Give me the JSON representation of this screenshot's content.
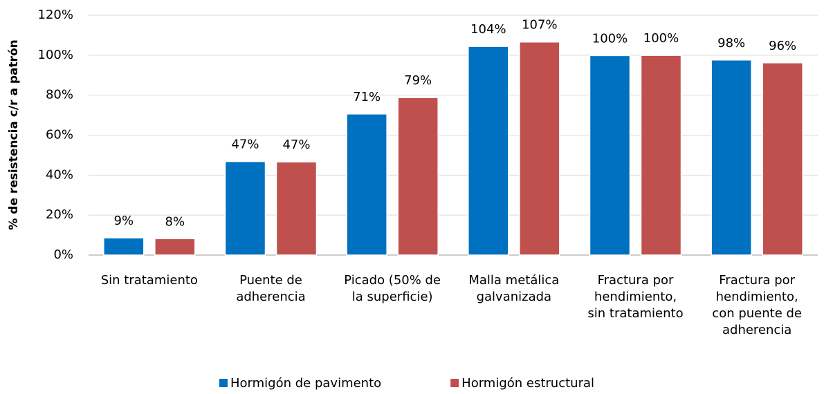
{
  "chart_data": {
    "type": "bar",
    "y_label": "% de resistencia c/r a patrón",
    "categories": [
      "Sin tratamiento",
      "Puente de\nadherencia",
      "Picado (50% de\nla superficie)",
      "Malla metálica\ngalvanizada",
      "Fractura por\nhendimiento,\nsin tratamiento",
      "Fractura por\nhendimiento,\ncon puente de\nadherencia"
    ],
    "series": [
      {
        "name": "Hormigón de pavimento",
        "color": "#0070c0",
        "values": [
          8.6,
          46.8,
          70.6,
          104.4,
          99.8,
          97.6
        ],
        "value_labels": [
          "9%",
          "47%",
          "71%",
          "104%",
          "100%",
          "98%"
        ]
      },
      {
        "name": "Hormigón estructural",
        "color": "#c0504d",
        "values": [
          8.2,
          46.6,
          78.8,
          106.6,
          99.9,
          96.2
        ],
        "value_labels": [
          "8%",
          "47%",
          "79%",
          "107%",
          "100%",
          "96%"
        ]
      }
    ],
    "ylim": [
      0,
      120
    ],
    "yticks": [
      {
        "value": 0,
        "label": "0%"
      },
      {
        "value": 20,
        "label": "20%"
      },
      {
        "value": 40,
        "label": "40%"
      },
      {
        "value": 60,
        "label": "60%"
      },
      {
        "value": 80,
        "label": "80%"
      },
      {
        "value": 100,
        "label": "100%"
      },
      {
        "value": 120,
        "label": "120%"
      }
    ],
    "grid": true,
    "legend": "bottom"
  }
}
